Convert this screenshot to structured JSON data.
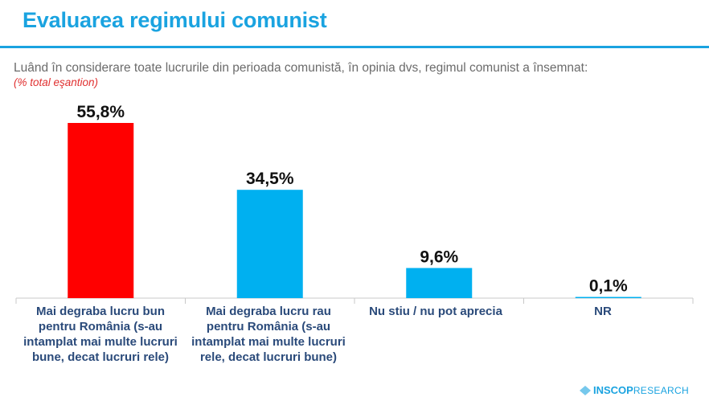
{
  "header": {
    "title": "Evaluarea regimului comunist",
    "question": "Luând în considerare toate lucrurile din perioada comunistă, în opinia dvs, regimul comunist a însemnat:",
    "note": "(% total eşantion)"
  },
  "chart_data": {
    "type": "bar",
    "title": "Evaluarea regimului comunist",
    "xlabel": "",
    "ylabel": "",
    "ylim": [
      0,
      60
    ],
    "grid": false,
    "categories": [
      "Mai degraba lucru bun pentru România (s-au intamplat mai multe lucruri bune, decat lucruri rele)",
      "Mai degraba lucru rau pentru România (s-au intamplat mai multe lucruri rele, decat lucruri bune)",
      "Nu stiu / nu pot aprecia",
      "NR"
    ],
    "values": [
      55.8,
      34.5,
      9.6,
      0.1
    ],
    "value_labels": [
      "55,8%",
      "34,5%",
      "9,6%",
      "0,1%"
    ],
    "colors": [
      "#ff0000",
      "#00b0f0",
      "#00b0f0",
      "#00b0f0"
    ]
  },
  "footer": {
    "logo_brand": "INSCOP",
    "logo_suffix": "RESEARCH"
  }
}
